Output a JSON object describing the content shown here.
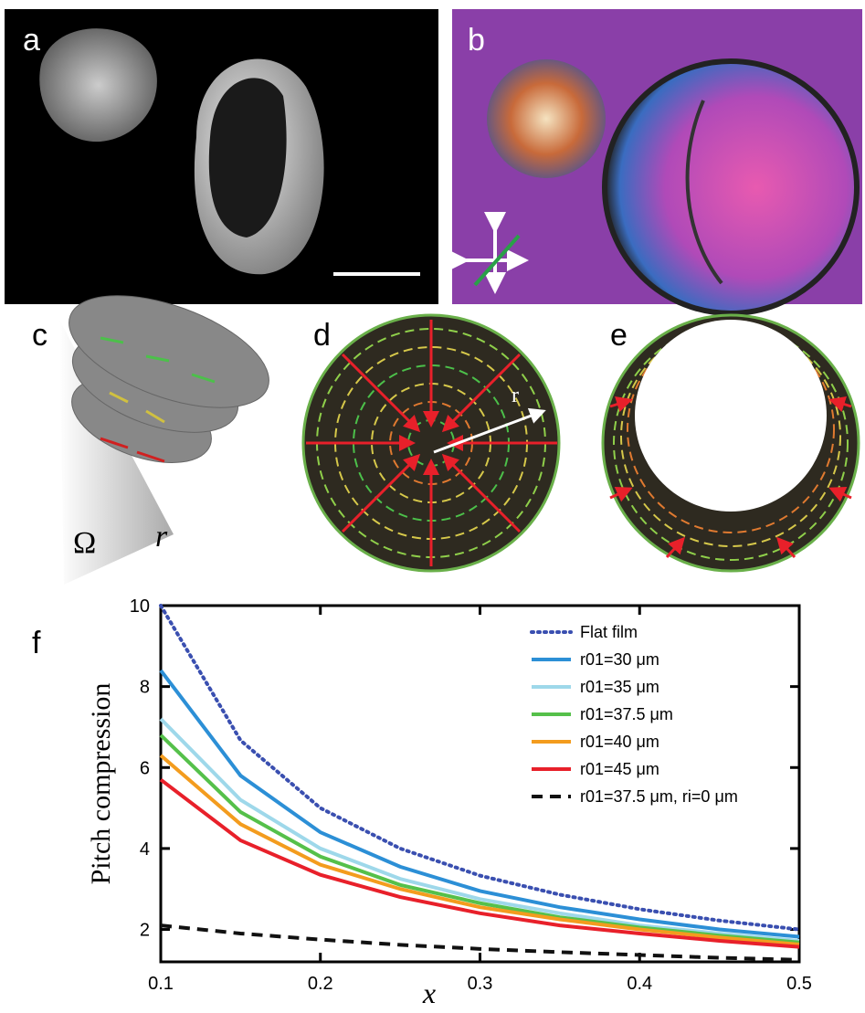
{
  "panels": {
    "a": "a",
    "b": "b",
    "c": "c",
    "d": "d",
    "e": "e",
    "f": "f"
  },
  "panel_c_labels": [
    "Ω",
    "r"
  ],
  "panel_d_label": "r",
  "chart_data": {
    "type": "line",
    "xlabel": "x",
    "ylabel": "Pitch compression",
    "x": [
      0.1,
      0.15,
      0.2,
      0.25,
      0.3,
      0.35,
      0.4,
      0.45,
      0.5
    ],
    "xlim": [
      0.1,
      0.5
    ],
    "xticks": [
      0.1,
      0.2,
      0.3,
      0.4,
      0.5
    ],
    "ylim": [
      1.2,
      10
    ],
    "yticks": [
      2,
      4,
      6,
      8,
      10
    ],
    "legend": "upper right",
    "series": [
      {
        "name": "Flat film",
        "color": "#3a4fb0",
        "style": "dotted",
        "values": [
          10,
          6.67,
          5,
          4,
          3.33,
          2.86,
          2.5,
          2.22,
          2
        ]
      },
      {
        "name": "r01=30 μm",
        "color": "#2c8fd6",
        "style": "solid",
        "values": [
          8.4,
          5.8,
          4.4,
          3.55,
          2.95,
          2.55,
          2.25,
          2.0,
          1.82
        ]
      },
      {
        "name": "r01=35 μm",
        "color": "#9ed8ea",
        "style": "solid",
        "values": [
          7.2,
          5.2,
          4.0,
          3.25,
          2.75,
          2.4,
          2.1,
          1.9,
          1.72
        ]
      },
      {
        "name": "r01=37.5 μm",
        "color": "#55c04a",
        "style": "solid",
        "values": [
          6.8,
          4.9,
          3.8,
          3.1,
          2.65,
          2.3,
          2.05,
          1.85,
          1.68
        ]
      },
      {
        "name": "r01=40 μm",
        "color": "#f39c1e",
        "style": "solid",
        "values": [
          6.3,
          4.6,
          3.6,
          3.0,
          2.55,
          2.25,
          2.0,
          1.8,
          1.63
        ]
      },
      {
        "name": "r01=45 μm",
        "color": "#e8202a",
        "style": "solid",
        "values": [
          5.7,
          4.2,
          3.35,
          2.8,
          2.4,
          2.1,
          1.9,
          1.72,
          1.57
        ]
      },
      {
        "name": "r01=37.5 μm, ri=0 μm",
        "color": "#111111",
        "style": "dashed",
        "values": [
          2.1,
          1.9,
          1.75,
          1.62,
          1.52,
          1.44,
          1.37,
          1.3,
          1.25
        ]
      }
    ]
  }
}
